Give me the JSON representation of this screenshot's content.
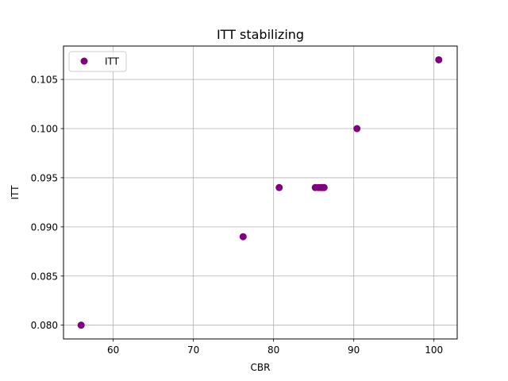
{
  "chart_data": {
    "type": "scatter",
    "title": "ITT stabilizing",
    "xlabel": "CBR",
    "ylabel": "ITT",
    "xlim": [
      53.8,
      102.9
    ],
    "ylim": [
      0.0786,
      0.1084
    ],
    "xticks": [
      60,
      70,
      80,
      90,
      100
    ],
    "yticks": [
      0.08,
      0.085,
      0.09,
      0.095,
      0.1,
      0.105
    ],
    "xtick_labels": [
      "60",
      "70",
      "80",
      "90",
      "100"
    ],
    "ytick_labels": [
      "0.080",
      "0.085",
      "0.090",
      "0.095",
      "0.100",
      "0.105"
    ],
    "grid": true,
    "legend_position": "upper-left",
    "series": [
      {
        "name": "ITT",
        "color": "#800080",
        "marker": "circle",
        "x": [
          56.0,
          76.2,
          80.7,
          85.2,
          85.6,
          85.9,
          86.1,
          86.3,
          90.4,
          100.6
        ],
        "y": [
          0.08,
          0.089,
          0.094,
          0.094,
          0.094,
          0.094,
          0.094,
          0.094,
          0.1,
          0.107
        ]
      }
    ]
  }
}
